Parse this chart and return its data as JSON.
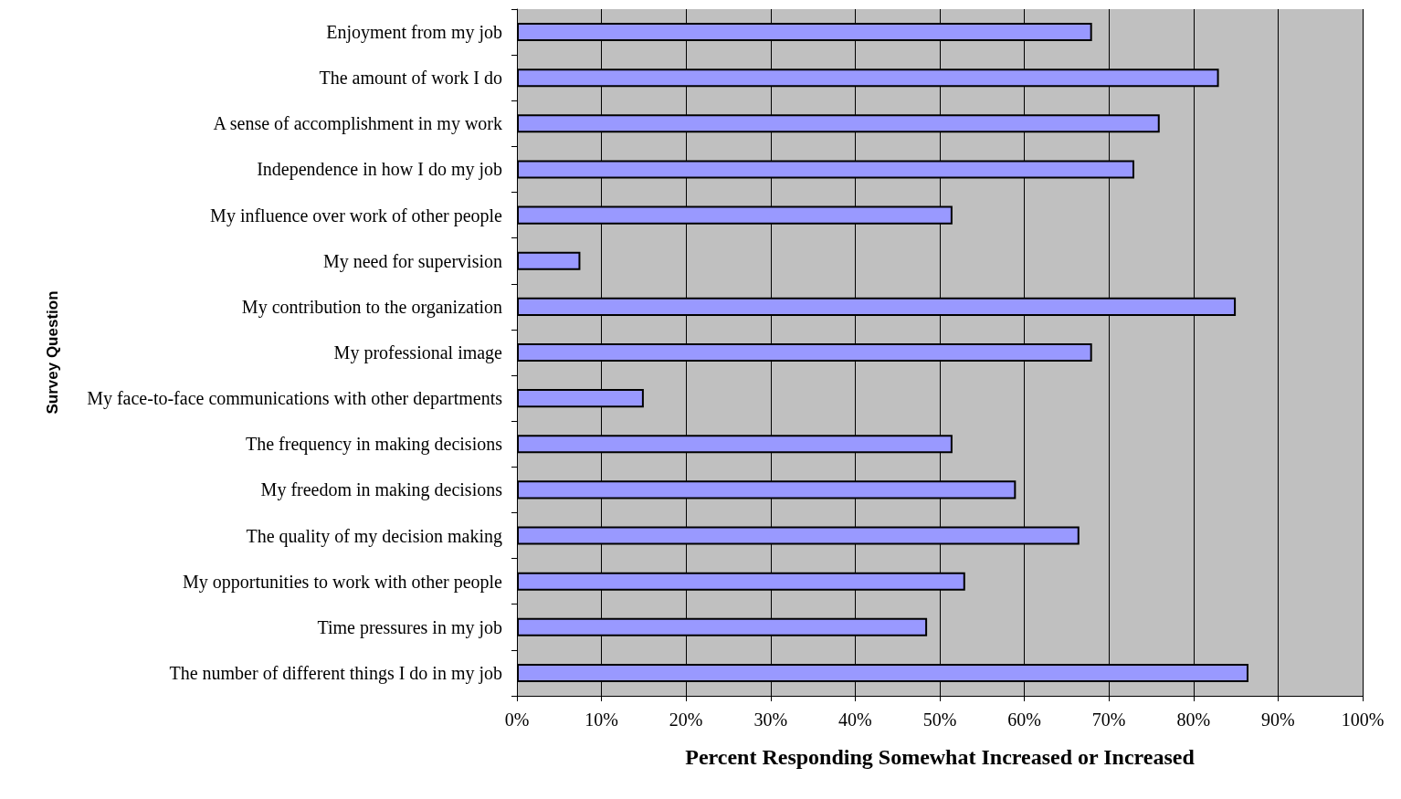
{
  "chart_data": {
    "type": "bar",
    "orientation": "horizontal",
    "xlabel": "Percent Responding Somewhat Increased or Increased",
    "ylabel": "Survey Question",
    "categories": [
      "Enjoyment from my job",
      "The amount of work I do",
      "A sense of accomplishment in my work",
      "Independence in how I do my job",
      "My influence over work of other people",
      "My need for supervision",
      "My contribution to the organization",
      "My professional image",
      "My face-to-face communications with other departments",
      "The frequency in making decisions",
      "My freedom in making decisions",
      "The quality of my decision making",
      "My opportunities to work with other people",
      "Time pressures in my job",
      "The number of different things I do in my job"
    ],
    "values": [
      68,
      83,
      76,
      73,
      51.5,
      7.5,
      85,
      68,
      15,
      51.5,
      59,
      66.5,
      53,
      48.5,
      86.5
    ],
    "color": "#9999ff",
    "xlim": [
      0,
      100
    ],
    "xticks": [
      {
        "value": 0,
        "label": "0%"
      },
      {
        "value": 10,
        "label": "10%"
      },
      {
        "value": 20,
        "label": "20%"
      },
      {
        "value": 30,
        "label": "30%"
      },
      {
        "value": 40,
        "label": "40%"
      },
      {
        "value": 50,
        "label": "50%"
      },
      {
        "value": 60,
        "label": "60%"
      },
      {
        "value": 70,
        "label": "70%"
      },
      {
        "value": 80,
        "label": "80%"
      },
      {
        "value": 90,
        "label": "90%"
      },
      {
        "value": 100,
        "label": "100%"
      }
    ],
    "grid": "x"
  }
}
